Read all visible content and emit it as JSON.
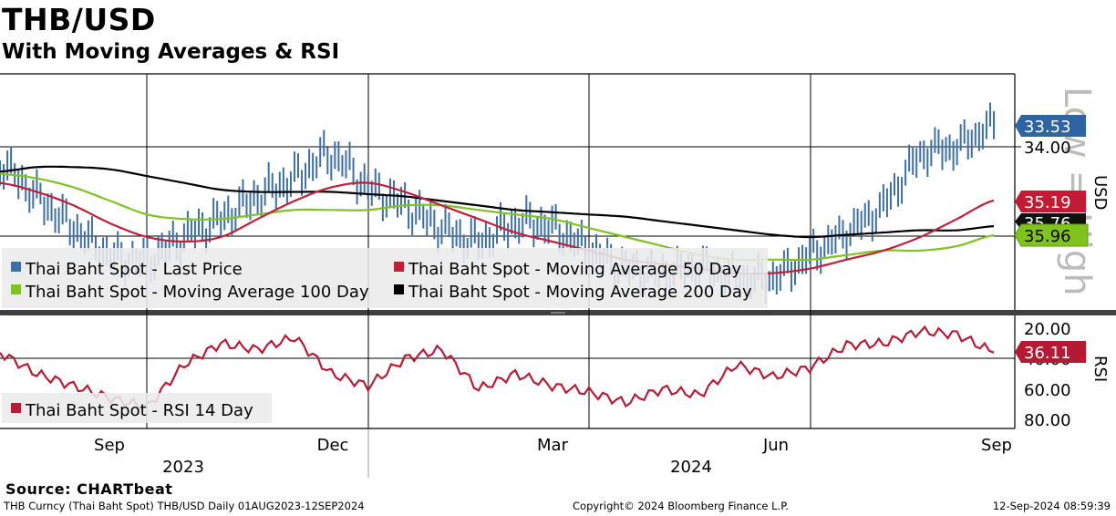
{
  "title": "THB/USD",
  "subtitle": "With Moving Averages & RSI",
  "source": "Source: CHARTbeat",
  "footer": {
    "left": "THB Curncy (Thai Baht Spot) THB/USD  Daily 01AUG2023-12SEP2024",
    "center": "Copyright© 2024 Bloomberg Finance L.P.",
    "right": "12-Sep-2024 08:59:39"
  },
  "colors": {
    "price": "#3d6fa6",
    "ma50": "#c0203a",
    "ma100": "#7ec323",
    "ma200": "#000000",
    "rsi": "#b81d38",
    "tag_price": "#2f64a3",
    "tag_ma50": "#c21b35",
    "tag_ma100": "#7fc31c",
    "tag_ma200": "#111111",
    "tag_rsi": "#b51a34"
  },
  "chart_data": [
    {
      "type": "line",
      "panel": "price",
      "y_axis_label": "USD",
      "y_axis_inverted": true,
      "y_ticks": [
        "34.00"
      ],
      "watermark": "Low = High",
      "ylim": [
        37.8,
        32.3
      ],
      "x_tick_labels": [
        "Sep",
        "Dec",
        "Mar",
        "Jun",
        "Sep"
      ],
      "x_year_labels": [
        "2023",
        "2024"
      ],
      "grid": true,
      "legend": "bottom-left",
      "last_value_tags": [
        {
          "series": "Thai Baht Spot - Last Price",
          "value": "33.53"
        },
        {
          "series": "Thai Baht Spot - Moving Average 50 Day",
          "value": "35.19"
        },
        {
          "series": "Thai Baht Spot - Moving Average 200 Day",
          "value": "35.76"
        },
        {
          "series": "Thai Baht Spot - Moving Average 100 Day",
          "value": "35.96"
        }
      ],
      "x": [
        "2023-08-01",
        "2023-08-15",
        "2023-09-01",
        "2023-09-15",
        "2023-10-01",
        "2023-10-15",
        "2023-11-01",
        "2023-11-15",
        "2023-12-01",
        "2023-12-15",
        "2024-01-01",
        "2024-01-15",
        "2024-02-01",
        "2024-02-15",
        "2024-03-01",
        "2024-03-15",
        "2024-04-01",
        "2024-04-15",
        "2024-05-01",
        "2024-05-15",
        "2024-06-01",
        "2024-06-15",
        "2024-07-01",
        "2024-07-15",
        "2024-08-01",
        "2024-08-15",
        "2024-09-01",
        "2024-09-12"
      ],
      "series": [
        {
          "name": "Thai Baht Spot - Last Price",
          "values": [
            34.4,
            35.1,
            35.8,
            36.4,
            36.5,
            36.0,
            35.6,
            35.1,
            34.7,
            34.2,
            34.9,
            35.3,
            35.8,
            36.1,
            35.7,
            35.8,
            36.3,
            36.7,
            36.8,
            36.7,
            36.9,
            36.9,
            36.4,
            35.9,
            35.3,
            34.2,
            34.0,
            33.53
          ]
        },
        {
          "name": "Thai Baht Spot - Moving Average 50 Day",
          "values": [
            34.8,
            35.0,
            35.3,
            35.7,
            36.0,
            36.1,
            36.0,
            35.6,
            35.2,
            34.9,
            34.8,
            35.0,
            35.3,
            35.6,
            35.9,
            36.1,
            36.3,
            36.5,
            36.6,
            36.7,
            36.8,
            36.8,
            36.7,
            36.5,
            36.3,
            36.0,
            35.6,
            35.19
          ]
        },
        {
          "name": "Thai Baht Spot - Moving Average 100 Day",
          "values": [
            34.6,
            34.7,
            34.9,
            35.2,
            35.5,
            35.6,
            35.6,
            35.5,
            35.4,
            35.4,
            35.4,
            35.3,
            35.3,
            35.4,
            35.5,
            35.6,
            35.8,
            36.0,
            36.2,
            36.4,
            36.5,
            36.5,
            36.5,
            36.4,
            36.3,
            36.3,
            36.2,
            35.96
          ]
        },
        {
          "name": "Thai Baht Spot - Moving Average 200 Day",
          "values": [
            34.55,
            34.45,
            34.45,
            34.5,
            34.65,
            34.8,
            34.95,
            35.0,
            35.0,
            35.0,
            35.05,
            35.1,
            35.2,
            35.3,
            35.4,
            35.45,
            35.5,
            35.55,
            35.65,
            35.75,
            35.85,
            35.95,
            36.0,
            35.95,
            35.9,
            35.85,
            35.85,
            35.76
          ]
        }
      ]
    },
    {
      "type": "line",
      "panel": "rsi",
      "y_axis_label": "RSI",
      "y_axis_inverted": true,
      "y_ticks": [
        "20.00",
        "40.00",
        "60.00",
        "80.00"
      ],
      "ylim": [
        84,
        15
      ],
      "legend": "bottom-left",
      "last_value_tags": [
        {
          "series": "Thai Baht Spot - RSI 14 Day",
          "value": "36.11"
        }
      ],
      "series": [
        {
          "name": "Thai Baht Spot - RSI 14 Day",
          "values": [
            36,
            50,
            58,
            66,
            72,
            44,
            30,
            34,
            26,
            50,
            58,
            40,
            34,
            60,
            50,
            58,
            62,
            69,
            60,
            64,
            44,
            52,
            46,
            31,
            30,
            22,
            24,
            36.11
          ]
        }
      ]
    }
  ]
}
